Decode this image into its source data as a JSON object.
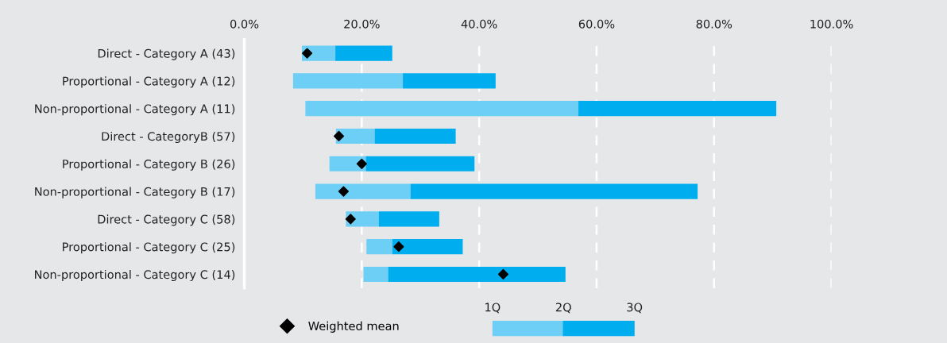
{
  "chart_data": {
    "type": "bar",
    "orientation": "horizontal",
    "categories": [
      "Direct - Category A (43)",
      "Proportional - Category A (12)",
      "Non-proportional - Category A (11)",
      "Direct - CategoryB (57)",
      "Proportional - Category B (26)",
      "Non-proportional - Category B (17)",
      "Direct - Category C (58)",
      "Proportional - Category C (25)",
      "Non-proportional - Category C (14)"
    ],
    "series": [
      {
        "color": "#6dcff6",
        "base": [
          9.8,
          8.3,
          10.4,
          15.6,
          14.5,
          12.1,
          17.3,
          20.8,
          20.3
        ],
        "values": [
          5.7,
          18.7,
          46.5,
          6.6,
          6.2,
          16.2,
          5.6,
          4.4,
          4.2
        ]
      },
      {
        "color": "#00aeef",
        "base": [
          15.5,
          27.0,
          56.9,
          22.2,
          20.7,
          28.3,
          22.9,
          25.2,
          24.5
        ],
        "values": [
          9.7,
          15.8,
          33.7,
          13.8,
          18.5,
          48.9,
          10.3,
          12.0,
          30.2
        ]
      },
      {
        "type": "scatter",
        "name": "Weighted mean",
        "color": "#000000",
        "values": [
          10.7,
          null,
          null,
          16.1,
          20.0,
          16.9,
          18.1,
          26.3,
          44.1
        ]
      }
    ],
    "xlim": [
      0,
      100
    ],
    "xticks": [
      {
        "value": 0,
        "label": "0.0%"
      },
      {
        "value": 20,
        "label": "20.0%"
      },
      {
        "value": 40,
        "label": "40.0%"
      },
      {
        "value": 60,
        "label": "60.0%"
      },
      {
        "value": 80,
        "label": "80.0%"
      },
      {
        "value": 100,
        "label": "100.0%"
      }
    ],
    "grid": "x",
    "legend": "bottom",
    "marker": "diamond",
    "annotations": [
      "1Q",
      "2Q",
      "3Q"
    ]
  }
}
